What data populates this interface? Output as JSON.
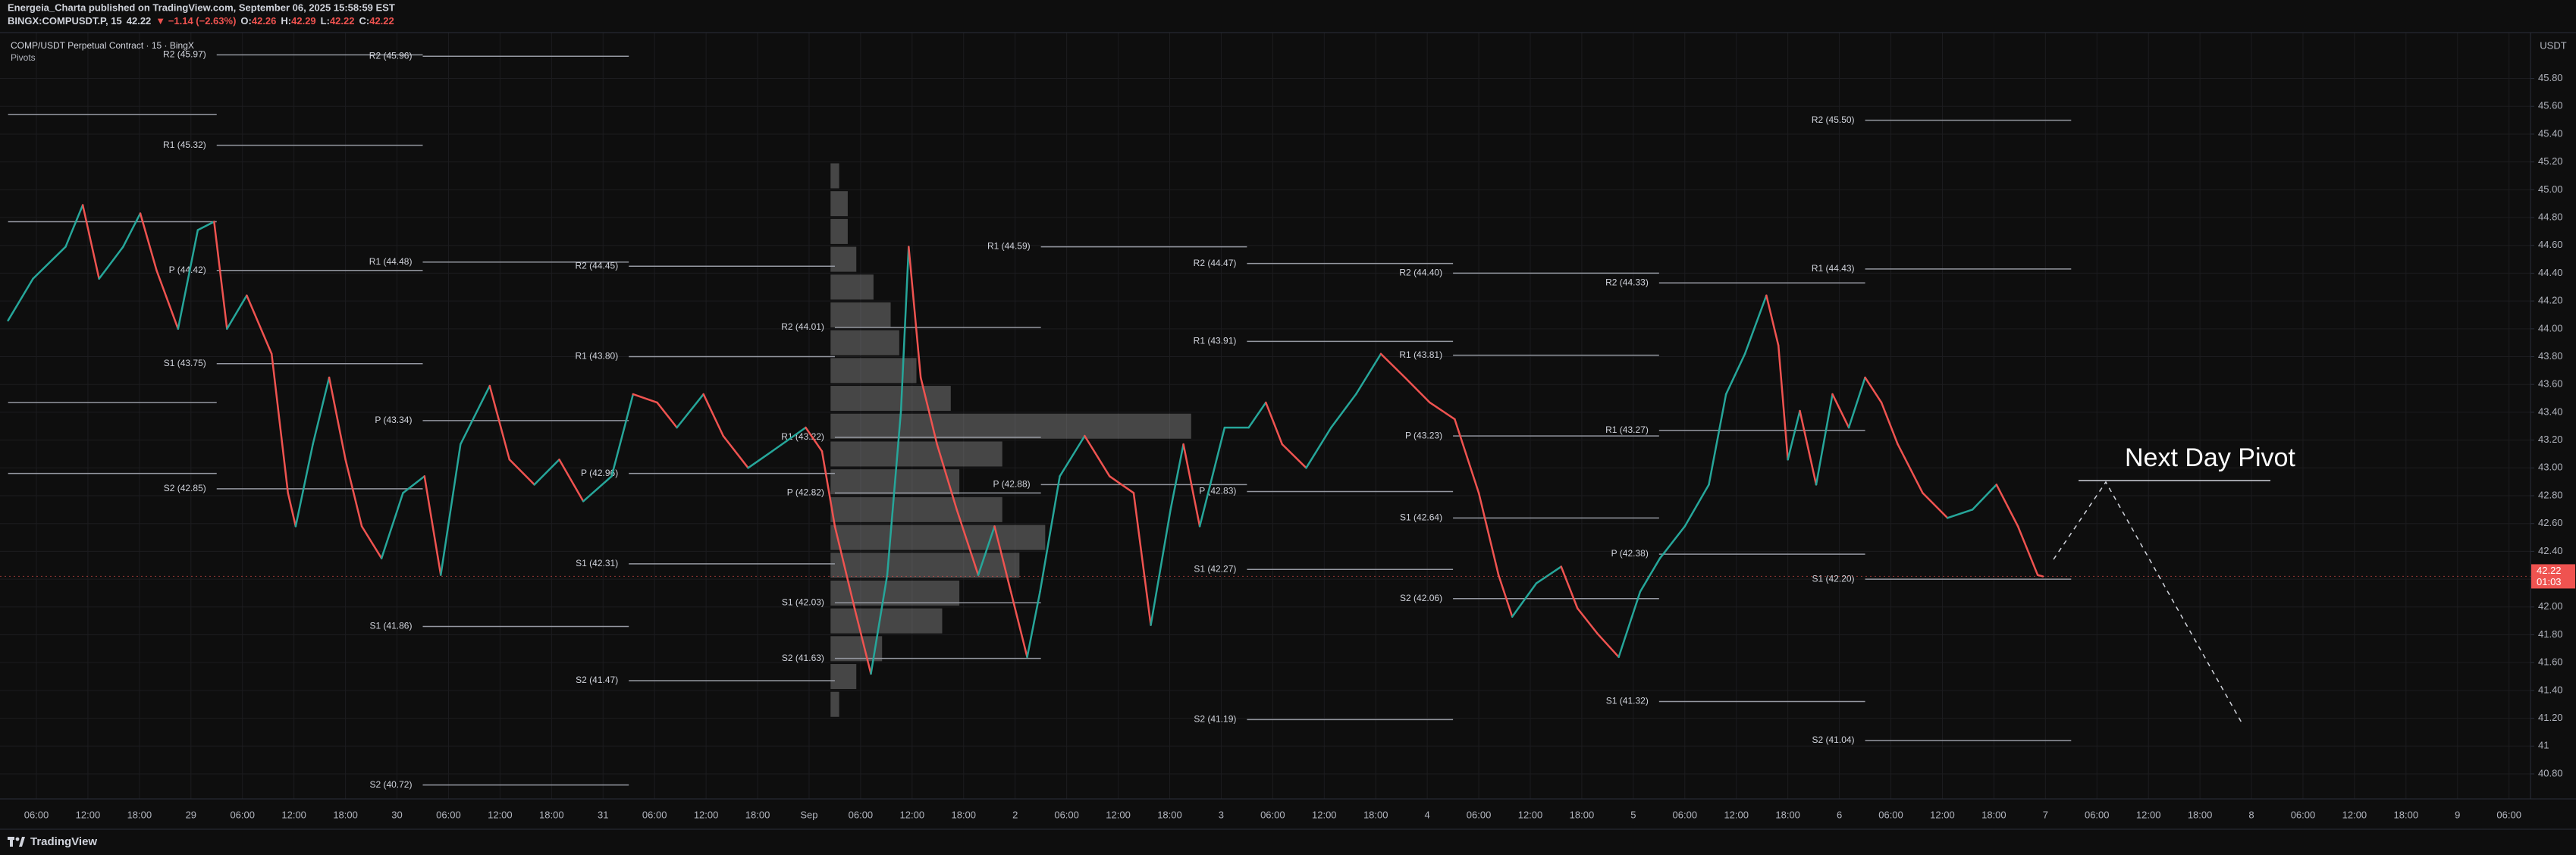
{
  "header": {
    "publisher": "Energeia_Charta published on TradingView.com, September 06, 2025 15:58:59 EST",
    "symbol": "BINGX:COMPUSDT.P, 15",
    "last": 42.22,
    "change": "▼ −1.14 (−2.63%)",
    "ohlc": [
      {
        "label": "O:",
        "value": 42.26
      },
      {
        "label": "H:",
        "value": 42.29
      },
      {
        "label": "L:",
        "value": 42.22
      },
      {
        "label": "C:",
        "value": 42.22
      }
    ]
  },
  "footer": {
    "brand": "TradingView"
  },
  "chart_data": {
    "type": "line",
    "title": "COMP/USDT Perpetual Contract · 15 · BingX",
    "indicator": "Pivots",
    "currency": "USDT",
    "up_color": "#26a69a",
    "down_color": "#ef5350",
    "grid": true,
    "last_price": {
      "value": 42.22,
      "countdown": "01:03"
    },
    "annotation": "Next Day Pivot",
    "xlim": [
      1.76,
      296.5
    ],
    "ylim": [
      40.62,
      46.13
    ],
    "yticks": [
      {
        "value": 40.8,
        "label": "40.80"
      },
      41,
      {
        "value": 41.2,
        "label": "41.20"
      },
      {
        "value": 41.4,
        "label": "41.40"
      },
      {
        "value": 41.6,
        "label": "41.60"
      },
      {
        "value": 41.8,
        "label": "41.80"
      },
      {
        "value": 42,
        "label": "42.00"
      },
      {
        "value": 42.2,
        "label": "42.20"
      },
      {
        "value": 42.4,
        "label": "42.40"
      },
      {
        "value": 42.6,
        "label": "42.60"
      },
      {
        "value": 42.8,
        "label": "42.80"
      },
      {
        "value": 43,
        "label": "43.00"
      },
      {
        "value": 43.2,
        "label": "43.20"
      },
      {
        "value": 43.4,
        "label": "43.40"
      },
      {
        "value": 43.6,
        "label": "43.60"
      },
      {
        "value": 43.8,
        "label": "43.80"
      },
      {
        "value": 44,
        "label": "44.00"
      },
      {
        "value": 44.2,
        "label": "44.20"
      },
      {
        "value": 44.4,
        "label": "44.40"
      },
      {
        "value": 44.6,
        "label": "44.60"
      },
      {
        "value": 44.8,
        "label": "44.80"
      },
      {
        "value": 45,
        "label": "45.00"
      },
      {
        "value": 45.2,
        "label": "45.20"
      },
      {
        "value": 45.4,
        "label": "45.40"
      },
      {
        "value": 45.6,
        "label": "45.60"
      },
      {
        "value": 45.8,
        "label": "45.80"
      }
    ],
    "xticks": [
      {
        "value": 6,
        "label": "06:00"
      },
      {
        "value": 12,
        "label": "12:00"
      },
      {
        "value": 18,
        "label": "18:00"
      },
      {
        "value": 24,
        "label": "29"
      },
      {
        "value": 30,
        "label": "06:00"
      },
      {
        "value": 36,
        "label": "12:00"
      },
      {
        "value": 42,
        "label": "18:00"
      },
      {
        "value": 48,
        "label": "30"
      },
      {
        "value": 54,
        "label": "06:00"
      },
      {
        "value": 60,
        "label": "12:00"
      },
      {
        "value": 66,
        "label": "18:00"
      },
      {
        "value": 72,
        "label": "31"
      },
      {
        "value": 78,
        "label": "06:00"
      },
      {
        "value": 84,
        "label": "12:00"
      },
      {
        "value": 90,
        "label": "18:00"
      },
      {
        "value": 96,
        "label": "Sep"
      },
      {
        "value": 102,
        "label": "06:00"
      },
      {
        "value": 108,
        "label": "12:00"
      },
      {
        "value": 114,
        "label": "18:00"
      },
      {
        "value": 120,
        "label": "2"
      },
      {
        "value": 126,
        "label": "06:00"
      },
      {
        "value": 132,
        "label": "12:00"
      },
      {
        "value": 138,
        "label": "18:00"
      },
      {
        "value": 144,
        "label": "3"
      },
      {
        "value": 150,
        "label": "06:00"
      },
      {
        "value": 156,
        "label": "12:00"
      },
      {
        "value": 162,
        "label": "18:00"
      },
      {
        "value": 168,
        "label": "4"
      },
      {
        "value": 174,
        "label": "06:00"
      },
      {
        "value": 180,
        "label": "12:00"
      },
      {
        "value": 186,
        "label": "18:00"
      },
      {
        "value": 192,
        "label": "5"
      },
      {
        "value": 198,
        "label": "06:00"
      },
      {
        "value": 204,
        "label": "12:00"
      },
      {
        "value": 210,
        "label": "18:00"
      },
      {
        "value": 216,
        "label": "6"
      },
      {
        "value": 222,
        "label": "06:00"
      },
      {
        "value": 228,
        "label": "12:00"
      },
      {
        "value": 234,
        "label": "18:00"
      },
      {
        "value": 240,
        "label": "7"
      },
      {
        "value": 246,
        "label": "06:00"
      },
      {
        "value": 252,
        "label": "12:00"
      },
      {
        "value": 258,
        "label": "18:00"
      },
      {
        "value": 264,
        "label": "8"
      },
      {
        "value": 270,
        "label": "06:00"
      },
      {
        "value": 276,
        "label": "12:00"
      },
      {
        "value": 282,
        "label": "18:00"
      },
      {
        "value": 288,
        "label": "9"
      },
      {
        "value": 294,
        "label": "06:00"
      }
    ],
    "x": [
      2.7,
      5.6,
      9.4,
      11.4,
      13.3,
      16.1,
      18.1,
      20.0,
      22.5,
      24.8,
      26.7,
      28.2,
      30.5,
      33.4,
      35.3,
      36.2,
      38.2,
      40.1,
      42.0,
      43.9,
      46.2,
      48.7,
      51.2,
      53.1,
      55.4,
      58.8,
      61.1,
      64.0,
      66.9,
      69.7,
      73.0,
      75.5,
      78.3,
      80.6,
      83.7,
      86.0,
      88.9,
      91.7,
      95.6,
      97.5,
      99.0,
      101.3,
      103.2,
      105.1,
      106.7,
      107.6,
      109.0,
      110.9,
      113.2,
      115.7,
      117.6,
      119.5,
      121.4,
      122.9,
      125.2,
      128.1,
      131.0,
      133.8,
      135.8,
      138.1,
      139.6,
      141.5,
      144.4,
      147.2,
      149.2,
      151.1,
      153.9,
      156.8,
      159.7,
      162.6,
      165.4,
      168.3,
      171.2,
      174.0,
      176.3,
      177.9,
      180.7,
      183.6,
      185.5,
      187.8,
      190.3,
      192.8,
      195.1,
      198.0,
      200.8,
      202.8,
      205.0,
      207.5,
      208.9,
      210.0,
      211.4,
      213.3,
      215.2,
      217.1,
      219.0,
      220.9,
      222.8,
      225.7,
      228.6,
      231.5,
      234.3,
      236.8,
      239.1,
      239.7
    ],
    "values": [
      44.06,
      44.36,
      44.59,
      44.89,
      44.36,
      44.59,
      44.83,
      44.42,
      44.0,
      44.71,
      44.77,
      44.0,
      44.24,
      43.82,
      42.82,
      42.58,
      43.17,
      43.65,
      43.06,
      42.58,
      42.35,
      42.82,
      42.94,
      42.23,
      43.17,
      43.59,
      43.06,
      42.88,
      43.06,
      42.76,
      42.94,
      43.53,
      43.47,
      43.29,
      43.53,
      43.23,
      43.0,
      43.12,
      43.29,
      43.12,
      42.58,
      41.99,
      41.52,
      42.23,
      43.41,
      44.59,
      43.65,
      43.17,
      42.7,
      42.23,
      42.58,
      42.11,
      41.64,
      42.11,
      42.94,
      43.23,
      42.94,
      42.82,
      41.87,
      42.7,
      43.17,
      42.58,
      43.29,
      43.29,
      43.47,
      43.17,
      43.0,
      43.29,
      43.53,
      43.82,
      43.65,
      43.47,
      43.35,
      42.82,
      42.23,
      41.93,
      42.17,
      42.29,
      41.99,
      41.81,
      41.64,
      42.11,
      42.35,
      42.58,
      42.88,
      43.53,
      43.82,
      44.24,
      43.88,
      43.06,
      43.41,
      42.88,
      43.53,
      43.29,
      43.65,
      43.47,
      43.17,
      42.82,
      42.64,
      42.7,
      42.88,
      42.58,
      42.23,
      42.22
    ],
    "volume_profile": {
      "x": 98.5,
      "levels": [
        45.1,
        44.9,
        44.7,
        44.5,
        44.3,
        44.1,
        43.9,
        43.7,
        43.5,
        43.3,
        43.1,
        42.9,
        42.7,
        42.5,
        42.3,
        42.1,
        41.9,
        41.7,
        41.5,
        41.3
      ],
      "volumes": [
        1,
        2,
        2,
        3,
        5,
        7,
        8,
        10,
        14,
        42,
        20,
        15,
        20,
        25,
        22,
        15,
        13,
        6,
        3,
        1
      ]
    },
    "pivots": [
      {
        "label": null,
        "value": 45.54,
        "start": 2.7,
        "end": 27
      },
      {
        "label": null,
        "value": 44.77,
        "start": 2.7,
        "end": 27
      },
      {
        "label": null,
        "value": 43.47,
        "start": 2.7,
        "end": 27
      },
      {
        "label": null,
        "value": 42.96,
        "start": 2.7,
        "end": 27
      },
      {
        "label": "R2 (45.97)",
        "value": 45.97,
        "start": 27,
        "end": 51
      },
      {
        "label": "R1 (45.32)",
        "value": 45.32,
        "start": 27,
        "end": 51
      },
      {
        "label": "P (44.42)",
        "value": 44.42,
        "start": 27,
        "end": 51
      },
      {
        "label": "S1 (43.75)",
        "value": 43.75,
        "start": 27,
        "end": 51
      },
      {
        "label": "S2 (42.85)",
        "value": 42.85,
        "start": 27,
        "end": 51
      },
      {
        "label": "R2 (45.96)",
        "value": 45.96,
        "start": 51,
        "end": 75
      },
      {
        "label": "R1 (44.48)",
        "value": 44.48,
        "start": 51,
        "end": 75
      },
      {
        "label": "P (43.34)",
        "value": 43.34,
        "start": 51,
        "end": 75
      },
      {
        "label": "S1 (41.86)",
        "value": 41.86,
        "start": 51,
        "end": 75
      },
      {
        "label": "S2 (40.72)",
        "value": 40.72,
        "start": 51,
        "end": 75
      },
      {
        "label": "R2 (44.45)",
        "value": 44.45,
        "start": 75,
        "end": 99
      },
      {
        "label": "R1 (43.80)",
        "value": 43.8,
        "start": 75,
        "end": 99
      },
      {
        "label": "P (42.96)",
        "value": 42.96,
        "start": 75,
        "end": 99
      },
      {
        "label": "S1 (42.31)",
        "value": 42.31,
        "start": 75,
        "end": 99
      },
      {
        "label": "S2 (41.47)",
        "value": 41.47,
        "start": 75,
        "end": 99
      },
      {
        "label": "R2 (44.01)",
        "value": 44.01,
        "start": 99,
        "end": 123
      },
      {
        "label": "R1 (43.22)",
        "value": 43.22,
        "start": 99,
        "end": 123
      },
      {
        "label": "P (42.82)",
        "value": 42.82,
        "start": 99,
        "end": 123
      },
      {
        "label": "S1 (42.03)",
        "value": 42.03,
        "start": 99,
        "end": 123
      },
      {
        "label": "S2 (41.63)",
        "value": 41.63,
        "start": 99,
        "end": 123
      },
      {
        "label": "R1 (44.59)",
        "value": 44.59,
        "start": 123,
        "end": 147
      },
      {
        "label": "P (42.88)",
        "value": 42.88,
        "start": 123,
        "end": 147
      },
      {
        "label": "R2 (44.47)",
        "value": 44.47,
        "start": 147,
        "end": 171
      },
      {
        "label": "R1 (43.91)",
        "value": 43.91,
        "start": 147,
        "end": 171
      },
      {
        "label": "P (42.83)",
        "value": 42.83,
        "start": 147,
        "end": 171
      },
      {
        "label": "S1 (42.27)",
        "value": 42.27,
        "start": 147,
        "end": 171
      },
      {
        "label": "S2 (41.19)",
        "value": 41.19,
        "start": 147,
        "end": 171
      },
      {
        "label": "R2 (44.40)",
        "value": 44.4,
        "start": 171,
        "end": 195
      },
      {
        "label": "R1 (43.81)",
        "value": 43.81,
        "start": 171,
        "end": 195
      },
      {
        "label": "P (43.23)",
        "value": 43.23,
        "start": 171,
        "end": 195
      },
      {
        "label": "S1 (42.64)",
        "value": 42.64,
        "start": 171,
        "end": 195
      },
      {
        "label": "S2 (42.06)",
        "value": 42.06,
        "start": 171,
        "end": 195
      },
      {
        "label": "R2 (44.33)",
        "value": 44.33,
        "start": 195,
        "end": 219
      },
      {
        "label": "R1 (43.27)",
        "value": 43.27,
        "start": 195,
        "end": 219
      },
      {
        "label": "P (42.38)",
        "value": 42.38,
        "start": 195,
        "end": 219
      },
      {
        "label": "S1 (41.32)",
        "value": 41.32,
        "start": 195,
        "end": 219
      },
      {
        "label": "R2 (45.50)",
        "value": 45.5,
        "start": 219,
        "end": 243
      },
      {
        "label": "R1 (44.43)",
        "value": 44.43,
        "start": 219,
        "end": 243
      },
      {
        "label": "S1 (42.20)",
        "value": 42.2,
        "start": 219,
        "end": 243
      },
      {
        "label": "S2 (41.04)",
        "value": 41.04,
        "start": 219,
        "end": 243
      }
    ]
  }
}
